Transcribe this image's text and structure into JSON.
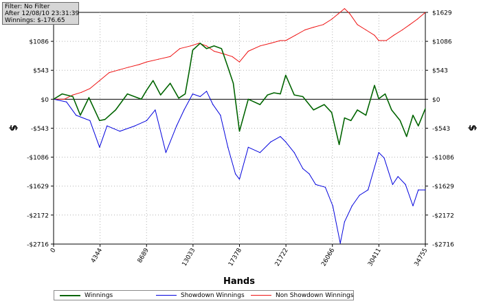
{
  "info": {
    "filter": "Filter: No Filter",
    "after": "After 12/08/10 23:31:39",
    "winnings": "Winnings: $-176.65"
  },
  "colors": {
    "winnings": "#006400",
    "showdown": "#0000dd",
    "non_showdown": "#ee1111",
    "zero_line": "#000000",
    "grid": "#b0b0b0"
  },
  "chart_data": {
    "type": "line",
    "title": "",
    "xlabel": "Hands",
    "ylabel": "$",
    "xlim": [
      0,
      34755
    ],
    "ylim": [
      -2716,
      1629
    ],
    "x_ticks": [
      0,
      4344,
      8689,
      13033,
      17378,
      21722,
      26066,
      30411,
      34755
    ],
    "x_tick_labels": [
      "0",
      "4344",
      "8689",
      "13033",
      "17378",
      "21722",
      "26066",
      "30411",
      "34755"
    ],
    "y_ticks": [
      1629,
      1086,
      543,
      0,
      -543,
      -1086,
      -1629,
      -2172,
      -2716
    ],
    "y_tick_labels": [
      "$1629",
      "$1086",
      "$543",
      "$0",
      "-$543",
      "-$1086",
      "-$1629",
      "-$2172",
      "-$2716"
    ],
    "grid": true,
    "legend_position": "bottom",
    "series": [
      {
        "name": "Winnings",
        "color": "#006400",
        "x": [
          0,
          800,
          1800,
          2500,
          3300,
          4300,
          4800,
          5800,
          6900,
          8200,
          8700,
          9300,
          10000,
          10900,
          11700,
          12300,
          12700,
          13000,
          13700,
          14300,
          15000,
          15700,
          16300,
          16800,
          17378,
          18200,
          19300,
          20000,
          20600,
          21200,
          21700,
          22500,
          23300,
          24300,
          25300,
          26000,
          26700,
          27200,
          27800,
          28400,
          29200,
          30000,
          30400,
          31000,
          31600,
          32400,
          33000,
          33600,
          34100,
          34755
        ],
        "y": [
          0,
          100,
          50,
          -300,
          30,
          -400,
          -380,
          -200,
          100,
          0,
          170,
          350,
          80,
          300,
          20,
          100,
          550,
          920,
          1050,
          950,
          1000,
          950,
          600,
          300,
          -600,
          0,
          -100,
          80,
          120,
          100,
          450,
          80,
          50,
          -200,
          -100,
          -250,
          -850,
          -350,
          -400,
          -200,
          -300,
          260,
          10,
          100,
          -200,
          -400,
          -700,
          -300,
          -500,
          -176
        ]
      },
      {
        "name": "Showdown Winnings",
        "color": "#0000dd",
        "x": [
          0,
          1200,
          2100,
          3400,
          4300,
          5000,
          6200,
          7600,
          8700,
          9500,
          10500,
          11500,
          12200,
          13000,
          13700,
          14300,
          14900,
          15600,
          16300,
          17000,
          17378,
          18200,
          19300,
          20300,
          21200,
          21700,
          22500,
          23300,
          23900,
          24500,
          25400,
          26100,
          26800,
          27200,
          27900,
          28600,
          29400,
          30400,
          30900,
          31700,
          32200,
          32900,
          33600,
          34100,
          34755
        ],
        "y": [
          0,
          -50,
          -300,
          -400,
          -900,
          -500,
          -600,
          -500,
          -400,
          -200,
          -1000,
          -500,
          -200,
          100,
          50,
          150,
          -100,
          -300,
          -900,
          -1400,
          -1500,
          -900,
          -1000,
          -800,
          -700,
          -800,
          -1000,
          -1300,
          -1400,
          -1600,
          -1650,
          -2000,
          -2700,
          -2300,
          -2000,
          -1800,
          -1700,
          -1000,
          -1100,
          -1600,
          -1450,
          -1600,
          -2000,
          -1700,
          -1700
        ]
      },
      {
        "name": "Non Showdown Winnings",
        "color": "#ee1111",
        "x": [
          0,
          1000,
          1800,
          2600,
          3400,
          4300,
          5200,
          6100,
          7000,
          8000,
          8700,
          9800,
          10900,
          11800,
          12800,
          13600,
          14300,
          15000,
          15900,
          16700,
          17378,
          18200,
          19300,
          20300,
          21200,
          21700,
          22600,
          23500,
          24300,
          25200,
          26000,
          26600,
          27200,
          27700,
          28400,
          29200,
          30000,
          30400,
          31100,
          31800,
          32600,
          33300,
          34000,
          34755
        ],
        "y": [
          0,
          0,
          80,
          130,
          200,
          350,
          500,
          550,
          600,
          650,
          700,
          750,
          800,
          950,
          1000,
          1050,
          1000,
          900,
          850,
          800,
          700,
          900,
          1000,
          1050,
          1100,
          1100,
          1200,
          1300,
          1350,
          1400,
          1500,
          1600,
          1700,
          1600,
          1400,
          1300,
          1200,
          1100,
          1100,
          1200,
          1300,
          1400,
          1500,
          1629
        ]
      }
    ]
  },
  "legend": {
    "winnings": "Winnings",
    "showdown": "Showdown Winnings",
    "non_showdown": "Non Showdown Winnings"
  }
}
